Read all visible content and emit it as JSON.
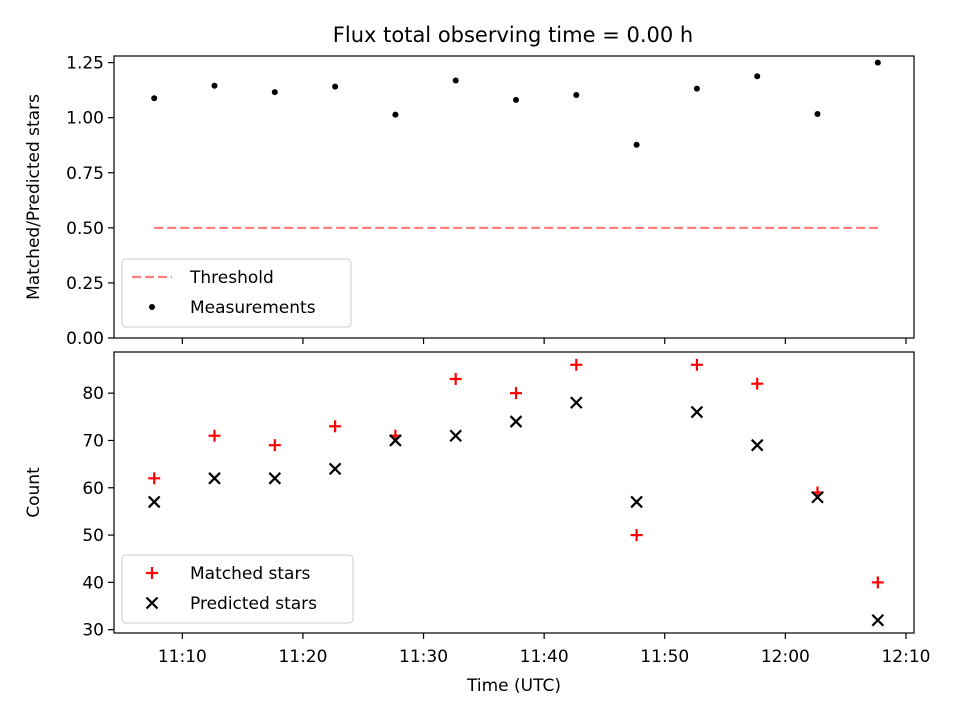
{
  "title": "Flux total observing time = 0.00 h",
  "colors": {
    "threshold": "#ff7f7f",
    "measurements": "#000000",
    "matched": "#ff0000",
    "predicted": "#000000"
  },
  "chart_data": [
    {
      "type": "scatter",
      "title": "Flux total observing time = 0.00 h",
      "ylabel": "Matched/Predicted stars",
      "xlabel": "",
      "ylim": [
        0,
        1.28
      ],
      "yticks": [
        0.0,
        0.25,
        0.5,
        0.75,
        1.0,
        1.25
      ],
      "ytick_labels": [
        "0.00",
        "0.25",
        "0.50",
        "0.75",
        "1.00",
        "1.25"
      ],
      "grid": false,
      "legend_position": "bottom-left",
      "x": [
        "11:07:40",
        "11:12:40",
        "11:17:40",
        "11:22:40",
        "11:27:40",
        "11:32:40",
        "11:37:40",
        "11:42:40",
        "11:47:40",
        "11:52:40",
        "11:57:40",
        "12:02:40",
        "12:07:40"
      ],
      "series": [
        {
          "name": "Threshold",
          "style": "dashed-line",
          "x": [
            "11:07:40",
            "12:07:40"
          ],
          "values": [
            0.5,
            0.5
          ]
        },
        {
          "name": "Measurements",
          "style": "dot",
          "values": [
            1.088,
            1.145,
            1.116,
            1.141,
            1.014,
            1.169,
            1.081,
            1.103,
            0.877,
            1.132,
            1.188,
            1.017,
            1.25
          ]
        }
      ]
    },
    {
      "type": "scatter",
      "xlabel": "Time (UTC)",
      "ylabel": "Count",
      "xlim": [
        "11:04:20",
        "12:10:40"
      ],
      "ylim": [
        29.3,
        88.7
      ],
      "yticks": [
        30,
        40,
        50,
        60,
        70,
        80
      ],
      "ytick_labels": [
        "30",
        "40",
        "50",
        "60",
        "70",
        "80"
      ],
      "xticks": [
        "11:10",
        "11:20",
        "11:30",
        "11:40",
        "11:50",
        "12:00",
        "12:10"
      ],
      "grid": false,
      "legend_position": "bottom-left",
      "x": [
        "11:07:40",
        "11:12:40",
        "11:17:40",
        "11:22:40",
        "11:27:40",
        "11:32:40",
        "11:37:40",
        "11:42:40",
        "11:47:40",
        "11:52:40",
        "11:57:40",
        "12:02:40",
        "12:07:40"
      ],
      "series": [
        {
          "name": "Matched stars",
          "marker": "+",
          "values": [
            62,
            71,
            69,
            73,
            71,
            83,
            80,
            86,
            50,
            86,
            82,
            59,
            40
          ]
        },
        {
          "name": "Predicted stars",
          "marker": "x",
          "values": [
            57,
            62,
            62,
            64,
            70,
            71,
            74,
            78,
            57,
            76,
            69,
            58,
            32
          ]
        }
      ]
    }
  ]
}
